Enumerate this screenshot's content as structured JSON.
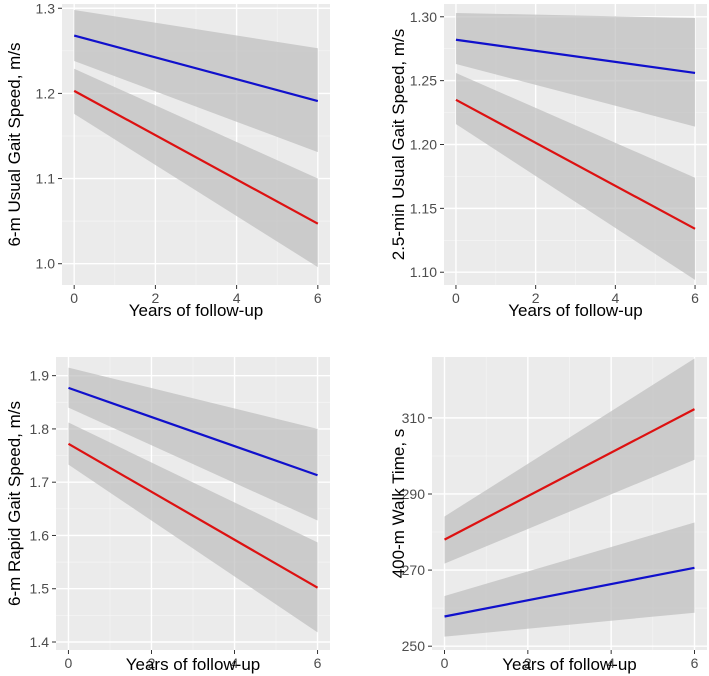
{
  "chart_data": [
    {
      "type": "line",
      "title": "",
      "xlabel": "Years of follow-up",
      "ylabel": "6-m Usual Gait Speed, m/s",
      "xlim": [
        -0.3,
        6.3
      ],
      "ylim": [
        0.975,
        1.305
      ],
      "x_ticks": [
        0,
        2,
        4,
        6
      ],
      "x_tick_labels": [
        "0",
        "2",
        "4",
        "6"
      ],
      "y_ticks": [
        1.0,
        1.1,
        1.2,
        1.3
      ],
      "y_tick_labels": [
        "1.0",
        "1.1",
        "1.2",
        "1.3"
      ],
      "grid": true,
      "series": [
        {
          "name": "blue",
          "color": "#1010cc",
          "x": [
            0,
            6
          ],
          "y": [
            1.268,
            1.191
          ],
          "ci_lower": [
            1.238,
            1.131
          ],
          "ci_upper": [
            1.298,
            1.253
          ]
        },
        {
          "name": "red",
          "color": "#dd1111",
          "x": [
            0,
            6
          ],
          "y": [
            1.203,
            1.047
          ],
          "ci_lower": [
            1.176,
            0.996
          ],
          "ci_upper": [
            1.229,
            1.1
          ]
        }
      ]
    },
    {
      "type": "line",
      "title": "",
      "xlabel": "Years of follow-up",
      "ylabel": "2.5-min Usual Gait Speed, m/s",
      "xlim": [
        -0.3,
        6.3
      ],
      "ylim": [
        1.09,
        1.31
      ],
      "x_ticks": [
        0,
        2,
        4,
        6
      ],
      "x_tick_labels": [
        "0",
        "2",
        "4",
        "6"
      ],
      "y_ticks": [
        1.1,
        1.15,
        1.2,
        1.25,
        1.3
      ],
      "y_tick_labels": [
        "1.10",
        "1.15",
        "1.20",
        "1.25",
        "1.30"
      ],
      "grid": true,
      "series": [
        {
          "name": "blue",
          "color": "#1010cc",
          "x": [
            0,
            6
          ],
          "y": [
            1.282,
            1.256
          ],
          "ci_lower": [
            1.263,
            1.214
          ],
          "ci_upper": [
            1.303,
            1.299
          ]
        },
        {
          "name": "red",
          "color": "#dd1111",
          "x": [
            0,
            6
          ],
          "y": [
            1.235,
            1.134
          ],
          "ci_lower": [
            1.216,
            1.094
          ],
          "ci_upper": [
            1.256,
            1.174
          ]
        }
      ]
    },
    {
      "type": "line",
      "title": "",
      "xlabel": "Years of follow-up",
      "ylabel": "6-m Rapid Gait Speed, m/s",
      "xlim": [
        -0.3,
        6.3
      ],
      "ylim": [
        1.385,
        1.935
      ],
      "x_ticks": [
        0,
        2,
        4,
        6
      ],
      "x_tick_labels": [
        "0",
        "2",
        "4",
        "6"
      ],
      "y_ticks": [
        1.4,
        1.5,
        1.6,
        1.7,
        1.8,
        1.9
      ],
      "y_tick_labels": [
        "1.4",
        "1.5",
        "1.6",
        "1.7",
        "1.8",
        "1.9"
      ],
      "grid": true,
      "series": [
        {
          "name": "blue",
          "color": "#1010cc",
          "x": [
            0,
            6
          ],
          "y": [
            1.877,
            1.713
          ],
          "ci_lower": [
            1.84,
            1.628
          ],
          "ci_upper": [
            1.915,
            1.8
          ]
        },
        {
          "name": "red",
          "color": "#dd1111",
          "x": [
            0,
            6
          ],
          "y": [
            1.772,
            1.502
          ],
          "ci_lower": [
            1.733,
            1.418
          ],
          "ci_upper": [
            1.812,
            1.587
          ]
        }
      ]
    },
    {
      "type": "line",
      "title": "",
      "xlabel": "Years of follow-up",
      "ylabel": "400-m Walk Time, s",
      "xlim": [
        -0.3,
        6.3
      ],
      "ylim": [
        249,
        326
      ],
      "x_ticks": [
        0,
        2,
        4,
        6
      ],
      "x_tick_labels": [
        "0",
        "2",
        "4",
        "6"
      ],
      "y_ticks": [
        250,
        270,
        290,
        310
      ],
      "y_tick_labels": [
        "250",
        "270",
        "290",
        "310"
      ],
      "grid": true,
      "series": [
        {
          "name": "blue",
          "color": "#1010cc",
          "x": [
            0,
            6
          ],
          "y": [
            257.8,
            270.6
          ],
          "ci_lower": [
            252.5,
            258.8
          ],
          "ci_upper": [
            263.2,
            282.5
          ]
        },
        {
          "name": "red",
          "color": "#dd1111",
          "x": [
            0,
            6
          ],
          "y": [
            278.0,
            312.3
          ],
          "ci_lower": [
            271.7,
            299.0
          ],
          "ci_upper": [
            284.1,
            325.6
          ]
        }
      ]
    }
  ]
}
